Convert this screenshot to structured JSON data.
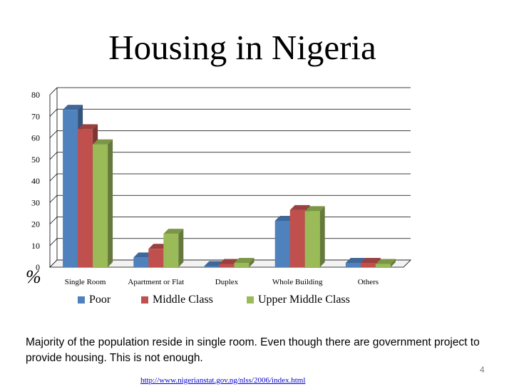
{
  "slide": {
    "title": "Housing in Nigeria",
    "caption": "Majority of the population reside in single room. Even though there are government project to provide housing.  This is not enough.",
    "page_number": "4",
    "source_url": "http://www.nigerianstat.gov.ng/nlss/2006/index.html",
    "y_unit": "%"
  },
  "chart_data": {
    "type": "bar",
    "style": "3d-clustered-column",
    "title": "",
    "xlabel": "",
    "ylabel": "",
    "ylim": [
      0,
      80
    ],
    "yticks": [
      0,
      10,
      20,
      30,
      40,
      50,
      60,
      70,
      80
    ],
    "grid": true,
    "legend_position": "bottom",
    "categories": [
      "Single Room",
      "Apartment or Flat",
      "Duplex",
      "Whole Building",
      "Others"
    ],
    "series": [
      {
        "name": "Poor",
        "color": "#4f81bd",
        "values": [
          73,
          4.5,
          0.5,
          21.5,
          2
        ]
      },
      {
        "name": "Middle Class",
        "color": "#c0504d",
        "values": [
          64,
          8.5,
          1.5,
          26.5,
          2
        ]
      },
      {
        "name": "Upper Middle Class",
        "color": "#9bbb59",
        "values": [
          57,
          15.5,
          2,
          26,
          1.5
        ]
      }
    ]
  }
}
